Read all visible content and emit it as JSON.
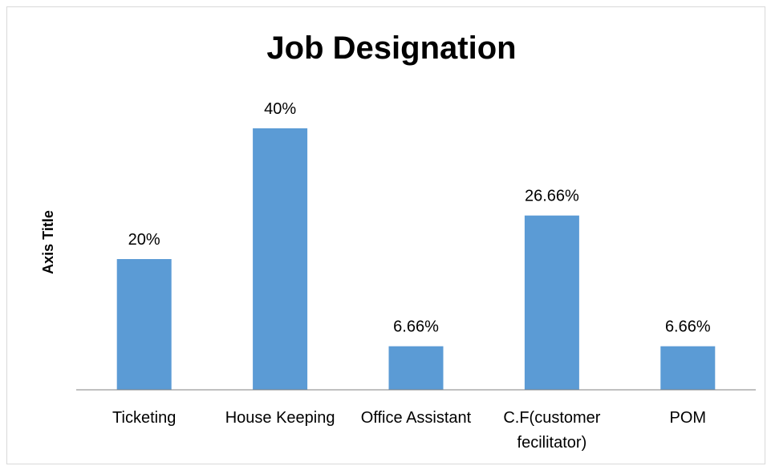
{
  "chart_data": {
    "type": "bar",
    "title": "Job Designation",
    "xlabel": "",
    "ylabel": "Axis Title",
    "categories": [
      [
        "Ticketing"
      ],
      [
        "House Keeping"
      ],
      [
        "Office Assistant"
      ],
      [
        "C.F(customer",
        "fecilitator)"
      ],
      [
        "POM"
      ]
    ],
    "values": [
      20,
      40,
      6.66,
      26.66,
      6.66
    ],
    "data_labels": [
      "20%",
      "40%",
      "6.66%",
      "26.66%",
      "6.66%"
    ],
    "ylim": [
      0,
      45
    ],
    "grid": false,
    "legend": "none",
    "bar_color": "#5b9bd5",
    "axis_color": "#808080"
  }
}
